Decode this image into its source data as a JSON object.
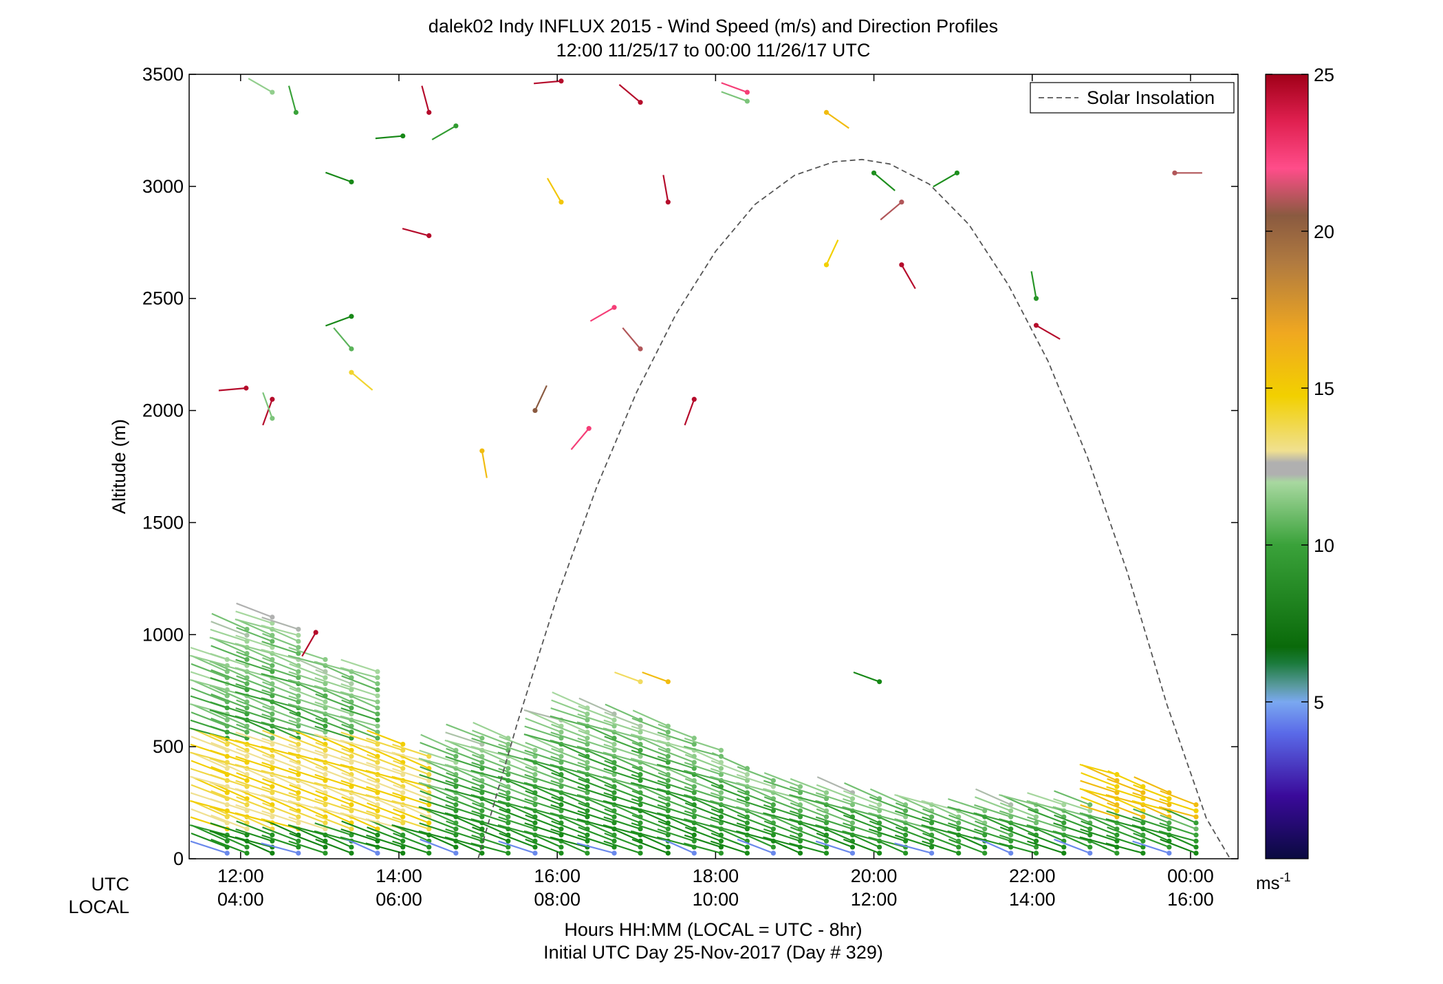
{
  "chart_data": {
    "type": "scatter",
    "title": "dalek02 Indy INFLUX 2015 - Wind Speed (m/s) and Direction Profiles",
    "subtitle": "12:00 11/25/17 to 00:00 11/26/17  UTC",
    "ylabel": "Altitude (m)",
    "xlabel": "Hours HH:MM  (LOCAL = UTC - 8hr)",
    "xlabel2": "Initial UTC Day 25-Nov-2017 (Day # 329)",
    "xlim": [
      11.35,
      24.6
    ],
    "ylim": [
      0,
      3500
    ],
    "yticks": [
      0,
      500,
      1000,
      1500,
      2000,
      2500,
      3000,
      3500
    ],
    "xticks": [
      12,
      14,
      16,
      18,
      20,
      22,
      24
    ],
    "row_labels": {
      "utc": "UTC",
      "local": "LOCAL"
    },
    "xtick_utc_labels": [
      "12:00",
      "14:00",
      "16:00",
      "18:00",
      "20:00",
      "22:00",
      "00:00"
    ],
    "xtick_local_labels": [
      "04:00",
      "06:00",
      "08:00",
      "10:00",
      "12:00",
      "14:00",
      "16:00"
    ],
    "legend": {
      "label": "Solar Insolation",
      "placement": "top-right"
    },
    "colorbar": {
      "min": 0,
      "max": 25,
      "ticks": [
        5,
        10,
        15,
        20,
        25
      ],
      "unit": "ms-1"
    },
    "solar_insolation": {
      "x": [
        15.0,
        15.5,
        16.0,
        16.5,
        17.0,
        17.5,
        18.0,
        18.5,
        19.0,
        19.5,
        19.85,
        20.2,
        20.7,
        21.2,
        21.7,
        22.2,
        22.7,
        23.2,
        23.7,
        24.2,
        24.5
      ],
      "y": [
        0,
        610,
        1170,
        1660,
        2080,
        2430,
        2710,
        2920,
        3050,
        3110,
        3120,
        3100,
        3010,
        2830,
        2560,
        2220,
        1790,
        1280,
        690,
        180,
        0
      ]
    },
    "profile_times": [
      11.83,
      12.08,
      12.4,
      12.73,
      13.07,
      13.4,
      13.73,
      14.05,
      14.38,
      14.72,
      15.05,
      15.38,
      15.72,
      16.05,
      16.38,
      16.72,
      17.05,
      17.4,
      17.73,
      18.07,
      18.4,
      18.73,
      19.07,
      19.4,
      19.73,
      20.07,
      20.4,
      20.73,
      21.07,
      21.4,
      21.73,
      22.05,
      22.4,
      22.73,
      23.07,
      23.4,
      23.73,
      24.07
    ],
    "profile_tops": [
      900,
      1050,
      1080,
      1040,
      890,
      850,
      860,
      520,
      480,
      510,
      540,
      540,
      510,
      640,
      690,
      670,
      640,
      600,
      560,
      490,
      420,
      360,
      340,
      320,
      300,
      280,
      260,
      250,
      240,
      240,
      250,
      250,
      250,
      260,
      380,
      340,
      320,
      260
    ],
    "upper_barbs": [
      {
        "t": 12.4,
        "alt": 3420,
        "speed": 11.5,
        "dir": 300
      },
      {
        "t": 12.7,
        "alt": 3330,
        "speed": 10.0,
        "dir": 345
      },
      {
        "t": 13.4,
        "alt": 3020,
        "speed": 8.0,
        "dir": 290
      },
      {
        "t": 14.05,
        "alt": 3225,
        "speed": 8.0,
        "dir": 265
      },
      {
        "t": 14.38,
        "alt": 3330,
        "speed": 24.5,
        "dir": 345
      },
      {
        "t": 14.72,
        "alt": 3270,
        "speed": 9.5,
        "dir": 240
      },
      {
        "t": 16.05,
        "alt": 3470,
        "speed": 24.5,
        "dir": 265
      },
      {
        "t": 17.05,
        "alt": 3375,
        "speed": 24.5,
        "dir": 310
      },
      {
        "t": 18.4,
        "alt": 3420,
        "speed": 22.5,
        "dir": 290
      },
      {
        "t": 18.4,
        "alt": 3380,
        "speed": 11.0,
        "dir": 290
      },
      {
        "t": 19.4,
        "alt": 3330,
        "speed": 15.5,
        "dir": 125
      },
      {
        "t": 12.07,
        "alt": 2100,
        "speed": 24.5,
        "dir": 265
      },
      {
        "t": 12.4,
        "alt": 2050,
        "speed": 24.5,
        "dir": 200
      },
      {
        "t": 12.4,
        "alt": 1965,
        "speed": 11.0,
        "dir": 340
      },
      {
        "t": 13.4,
        "alt": 2420,
        "speed": 8.0,
        "dir": 250
      },
      {
        "t": 13.4,
        "alt": 2275,
        "speed": 10.5,
        "dir": 320
      },
      {
        "t": 13.4,
        "alt": 2170,
        "speed": 14.0,
        "dir": 130
      },
      {
        "t": 14.38,
        "alt": 2780,
        "speed": 24.5,
        "dir": 285
      },
      {
        "t": 15.05,
        "alt": 1820,
        "speed": 15.5,
        "dir": 170
      },
      {
        "t": 16.05,
        "alt": 2930,
        "speed": 15.0,
        "dir": 330
      },
      {
        "t": 15.72,
        "alt": 2000,
        "speed": 20.5,
        "dir": 25
      },
      {
        "t": 16.4,
        "alt": 1920,
        "speed": 22.5,
        "dir": 220
      },
      {
        "t": 16.72,
        "alt": 2460,
        "speed": 22.5,
        "dir": 240
      },
      {
        "t": 17.05,
        "alt": 2275,
        "speed": 21.0,
        "dir": 320
      },
      {
        "t": 17.4,
        "alt": 2930,
        "speed": 24.5,
        "dir": 350
      },
      {
        "t": 17.73,
        "alt": 2050,
        "speed": 24.5,
        "dir": 200
      },
      {
        "t": 19.4,
        "alt": 2650,
        "speed": 14.5,
        "dir": 25
      },
      {
        "t": 20.0,
        "alt": 3060,
        "speed": 8.5,
        "dir": 130
      },
      {
        "t": 20.35,
        "alt": 2930,
        "speed": 21.0,
        "dir": 230
      },
      {
        "t": 20.35,
        "alt": 2650,
        "speed": 24.5,
        "dir": 150
      },
      {
        "t": 21.05,
        "alt": 3060,
        "speed": 8.5,
        "dir": 240
      },
      {
        "t": 22.05,
        "alt": 2500,
        "speed": 9.0,
        "dir": 350
      },
      {
        "t": 22.05,
        "alt": 2380,
        "speed": 24.5,
        "dir": 120
      },
      {
        "t": 23.8,
        "alt": 3060,
        "speed": 21.0,
        "dir": 90
      },
      {
        "t": 12.95,
        "alt": 1010,
        "speed": 24.5,
        "dir": 210
      },
      {
        "t": 17.05,
        "alt": 790,
        "speed": 13.5,
        "dir": 290
      },
      {
        "t": 17.4,
        "alt": 790,
        "speed": 15.5,
        "dir": 290
      },
      {
        "t": 20.07,
        "alt": 790,
        "speed": 8.0,
        "dir": 290
      }
    ]
  },
  "colors": {
    "solar_line": "#555555",
    "low_speed": "#1a237e",
    "mid_speed": "#0a8a0a",
    "high_speed": "#f2c200",
    "max_speed": "#b00020"
  }
}
